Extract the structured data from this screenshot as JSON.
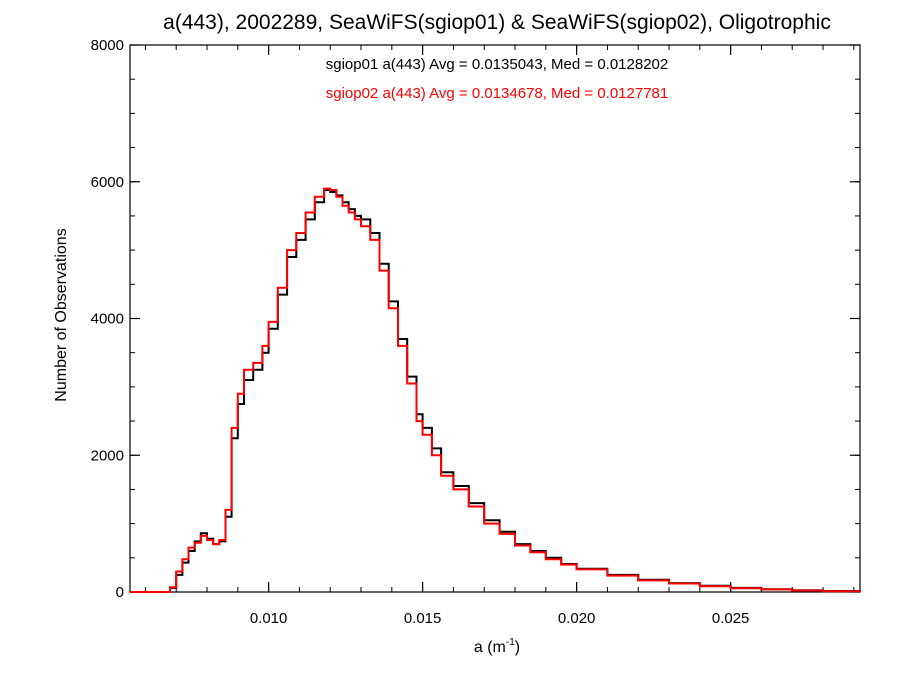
{
  "chart_data": {
    "type": "line",
    "title": "a(443), 2002289, SeaWiFS(sgiop01) & SeaWiFS(sgiop02), Oligotrophic",
    "xlabel_base": "a (m",
    "xlabel_sup": "-1",
    "xlabel_close": ")",
    "ylabel": "Number of Observations",
    "xlim": [
      0.0055,
      0.0292
    ],
    "ylim": [
      0,
      8000
    ],
    "xticks": [
      0.01,
      0.015,
      0.02,
      0.025
    ],
    "xtick_labels": [
      "0.010",
      "0.015",
      "0.020",
      "0.025"
    ],
    "xminor_step": 0.001,
    "yticks": [
      0,
      2000,
      4000,
      6000,
      8000
    ],
    "ytick_labels": [
      "0",
      "2000",
      "4000",
      "6000",
      "8000"
    ],
    "yminor_step": 500,
    "grid": false,
    "annotations": [
      {
        "text": "sgiop01 a(443) Avg = 0.0135043, Med = 0.0128202",
        "color": "#000000"
      },
      {
        "text": "sgiop02 a(443) Avg = 0.0134678, Med = 0.0127781",
        "color": "#ff0000"
      }
    ],
    "series": [
      {
        "color": "#000000",
        "x": [
          0.0055,
          0.0065,
          0.0068,
          0.007,
          0.0072,
          0.0074,
          0.0076,
          0.0078,
          0.008,
          0.0082,
          0.0084,
          0.0086,
          0.0088,
          0.009,
          0.0092,
          0.0095,
          0.0098,
          0.01,
          0.0103,
          0.0106,
          0.0109,
          0.0112,
          0.0115,
          0.0118,
          0.012,
          0.0122,
          0.0124,
          0.0126,
          0.0128,
          0.013,
          0.0133,
          0.0136,
          0.0139,
          0.0142,
          0.0145,
          0.0148,
          0.015,
          0.0153,
          0.0156,
          0.016,
          0.0165,
          0.017,
          0.0175,
          0.018,
          0.0185,
          0.019,
          0.0195,
          0.02,
          0.021,
          0.022,
          0.023,
          0.024,
          0.025,
          0.026,
          0.027,
          0.028,
          0.0292
        ],
        "y": [
          0,
          0,
          60,
          250,
          430,
          600,
          740,
          860,
          780,
          700,
          740,
          1100,
          2250,
          2750,
          3100,
          3250,
          3500,
          3850,
          4350,
          4900,
          5150,
          5450,
          5700,
          5880,
          5850,
          5800,
          5700,
          5600,
          5500,
          5450,
          5250,
          4800,
          4250,
          3700,
          3150,
          2600,
          2400,
          2100,
          1750,
          1550,
          1300,
          1050,
          880,
          700,
          600,
          500,
          410,
          340,
          250,
          180,
          130,
          90,
          60,
          40,
          25,
          15,
          0
        ]
      },
      {
        "color": "#ff0000",
        "x": [
          0.0055,
          0.0065,
          0.0068,
          0.007,
          0.0072,
          0.0074,
          0.0076,
          0.0078,
          0.008,
          0.0082,
          0.0084,
          0.0086,
          0.0088,
          0.009,
          0.0092,
          0.0095,
          0.0098,
          0.01,
          0.0103,
          0.0106,
          0.0109,
          0.0112,
          0.0115,
          0.0118,
          0.012,
          0.0122,
          0.0124,
          0.0126,
          0.0128,
          0.013,
          0.0133,
          0.0136,
          0.0139,
          0.0142,
          0.0145,
          0.0148,
          0.015,
          0.0153,
          0.0156,
          0.016,
          0.0165,
          0.017,
          0.0175,
          0.018,
          0.0185,
          0.019,
          0.0195,
          0.02,
          0.021,
          0.022,
          0.023,
          0.024,
          0.025,
          0.026,
          0.027,
          0.028,
          0.0292
        ],
        "y": [
          0,
          0,
          70,
          300,
          480,
          650,
          720,
          820,
          760,
          700,
          760,
          1200,
          2400,
          2900,
          3250,
          3350,
          3600,
          3950,
          4450,
          5000,
          5250,
          5550,
          5780,
          5900,
          5880,
          5780,
          5650,
          5550,
          5450,
          5350,
          5150,
          4700,
          4150,
          3600,
          3050,
          2500,
          2300,
          2000,
          1700,
          1500,
          1250,
          1000,
          850,
          680,
          580,
          480,
          400,
          330,
          240,
          170,
          125,
          85,
          55,
          38,
          22,
          12,
          0
        ]
      }
    ]
  }
}
